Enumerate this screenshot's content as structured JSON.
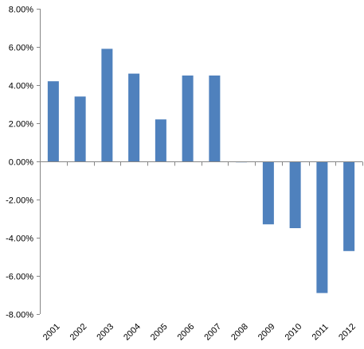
{
  "chart_data": {
    "type": "bar",
    "title": "",
    "xlabel": "",
    "ylabel": "",
    "categories": [
      "2001",
      "2002",
      "2003",
      "2004",
      "2005",
      "2006",
      "2007",
      "2008",
      "2009",
      "2010",
      "2011",
      "2012"
    ],
    "values": [
      4.2,
      3.4,
      5.9,
      4.6,
      2.2,
      4.5,
      4.5,
      -0.05,
      -3.3,
      -3.5,
      -6.9,
      -4.7
    ],
    "ylim": [
      -8,
      8
    ],
    "yticks": [
      8,
      6,
      4,
      2,
      0,
      -2,
      -4,
      -6,
      -8
    ],
    "ytick_labels": [
      "8.00%",
      "6.00%",
      "4.00%",
      "2.00%",
      "0.00%",
      "-2.00%",
      "-4.00%",
      "-6.00%",
      "-8.00%"
    ],
    "grid": false,
    "legend": "none",
    "bar_color": "#4f81bd",
    "axis_color": "#868686"
  }
}
